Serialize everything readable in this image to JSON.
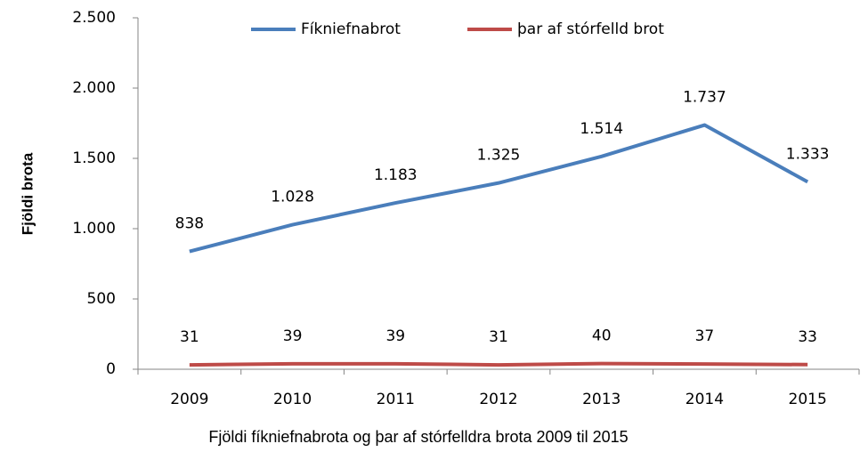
{
  "chart_data": {
    "type": "line",
    "ylabel": "Fjöldi brota",
    "xlabel": "Fjöldi fíkniefnabrota og þar af stórfelldra brota 2009 til 2015",
    "categories": [
      "2009",
      "2010",
      "2011",
      "2012",
      "2013",
      "2014",
      "2015"
    ],
    "series": [
      {
        "name": "Fíkniefnabrot",
        "color": "#4a7ebb",
        "values": [
          838,
          1028,
          1183,
          1325,
          1514,
          1737,
          1333
        ],
        "value_labels": [
          "838",
          "1.028",
          "1.183",
          "1.325",
          "1.514",
          "1.737",
          "1.333"
        ]
      },
      {
        "name": "þar af stórfelld brot",
        "color": "#be4b48",
        "values": [
          31,
          39,
          39,
          31,
          40,
          37,
          33
        ]
      }
    ],
    "ylim": [
      0,
      2500
    ],
    "yticks": [
      0,
      500,
      {
        "value": 1000,
        "label": "1.000"
      },
      {
        "value": 1500,
        "label": "1.500"
      },
      {
        "value": 2000,
        "label": "2.000"
      },
      {
        "value": 2500,
        "label": "2.500"
      }
    ],
    "legend": "top"
  }
}
